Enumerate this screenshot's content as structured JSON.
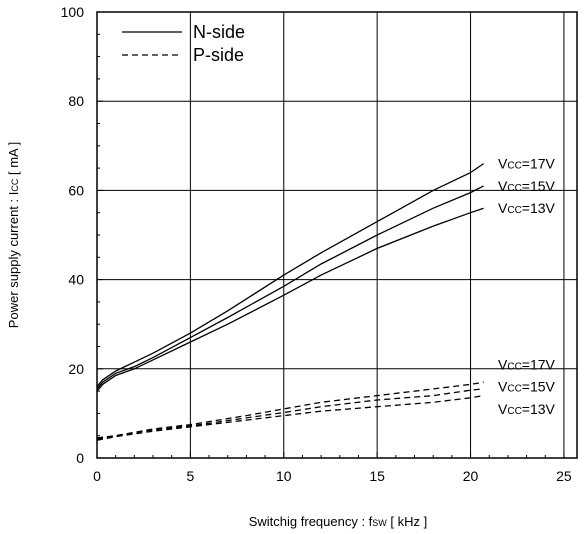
{
  "chart_data": {
    "type": "line",
    "title": "",
    "xlabel": "Switchig frequency  :  f",
    "xlabel_sub": "SW",
    "xlabel_unit": " [ kHz ]",
    "ylabel": "Power supply current : I",
    "ylabel_sub": "CC",
    "ylabel_unit": " [ mA ]",
    "xlim": [
      0,
      25.7
    ],
    "ylim": [
      0,
      100
    ],
    "xticks": [
      0,
      5,
      10,
      15,
      20,
      25
    ],
    "yticks": [
      0,
      20,
      40,
      60,
      80,
      100
    ],
    "grid": true,
    "legend": {
      "position": "top-left",
      "entries": [
        {
          "label": "N-side",
          "style": "solid"
        },
        {
          "label": "P-side",
          "style": "dashed"
        }
      ]
    },
    "series": [
      {
        "group": "N-side",
        "style": "solid",
        "x": [
          0,
          0.3,
          1,
          2,
          3,
          5,
          7,
          10,
          12,
          15,
          18,
          20,
          20.7
        ],
        "y": [
          16,
          17.5,
          19.5,
          21.5,
          23.5,
          28,
          33,
          41,
          46,
          53,
          60,
          64,
          66
        ]
      },
      {
        "group": "N-side",
        "style": "solid",
        "x": [
          0,
          0.3,
          1,
          2,
          3,
          5,
          7,
          10,
          12,
          15,
          18,
          20,
          20.7
        ],
        "y": [
          15.5,
          17,
          19,
          20.5,
          22.5,
          27,
          31.5,
          38.5,
          43.5,
          50,
          56,
          59.5,
          61
        ]
      },
      {
        "group": "N-side",
        "style": "solid",
        "x": [
          0,
          0.3,
          1,
          2,
          3,
          5,
          7,
          10,
          12,
          15,
          18,
          20,
          20.7
        ],
        "y": [
          15,
          16.5,
          18.5,
          20,
          22,
          26,
          30,
          36.5,
          41,
          47,
          52,
          55,
          56
        ]
      },
      {
        "group": "P-side",
        "style": "dashed",
        "x": [
          0,
          1,
          3,
          5,
          8,
          10,
          12,
          15,
          18,
          20,
          20.7
        ],
        "y": [
          4.5,
          5,
          6.5,
          7.5,
          9.5,
          11,
          12.5,
          14,
          15.5,
          16.5,
          17
        ]
      },
      {
        "group": "P-side",
        "style": "dashed",
        "x": [
          0,
          1,
          3,
          5,
          8,
          10,
          12,
          15,
          18,
          20,
          20.7
        ],
        "y": [
          4.3,
          5,
          6.3,
          7.2,
          9,
          10.2,
          11.5,
          13,
          14,
          15.2,
          15.5
        ]
      },
      {
        "group": "P-side",
        "style": "dashed",
        "x": [
          0,
          1,
          3,
          5,
          8,
          10,
          12,
          15,
          18,
          20,
          20.7
        ],
        "y": [
          4,
          4.8,
          6,
          7,
          8.5,
          9.5,
          10.5,
          11.5,
          12.5,
          13.5,
          14
        ]
      }
    ],
    "annotations": [
      {
        "text_main": "V",
        "text_sub": "CC",
        "text_rest": "=17V",
        "y": 66
      },
      {
        "text_main": "V",
        "text_sub": "CC",
        "text_rest": "=15V",
        "y": 61
      },
      {
        "text_main": "V",
        "text_sub": "CC",
        "text_rest": "=13V",
        "y": 56
      },
      {
        "text_main": "V",
        "text_sub": "CC",
        "text_rest": "=17V",
        "y": 21
      },
      {
        "text_main": "V",
        "text_sub": "CC",
        "text_rest": "=15V",
        "y": 16
      },
      {
        "text_main": "V",
        "text_sub": "CC",
        "text_rest": "=13V",
        "y": 11
      }
    ]
  }
}
